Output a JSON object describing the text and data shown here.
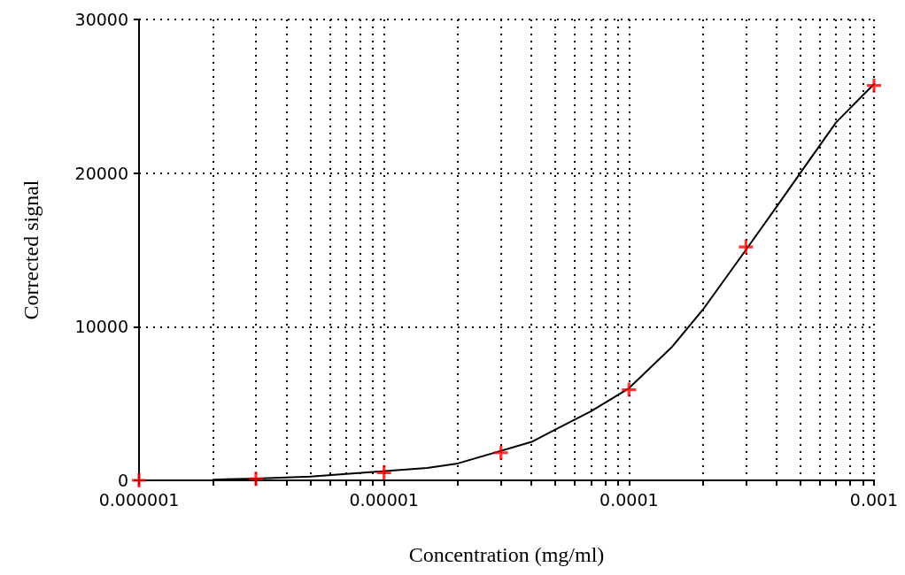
{
  "chart_data": {
    "type": "scatter",
    "xlabel": "Concentration (mg/ml)",
    "ylabel": "Corrected signal",
    "log": "x",
    "grid": true,
    "xlim": [
      1e-06,
      0.001
    ],
    "xticks": [
      {
        "value": 1e-06,
        "label": "0.000001"
      },
      {
        "value": 2e-06,
        "label": null
      },
      {
        "value": 3e-06,
        "label": null
      },
      {
        "value": 4e-06,
        "label": null
      },
      {
        "value": 5e-06,
        "label": null
      },
      {
        "value": 6e-06,
        "label": null
      },
      {
        "value": 7e-06,
        "label": null
      },
      {
        "value": 8e-06,
        "label": null
      },
      {
        "value": 9e-06,
        "label": null
      },
      {
        "value": 1e-05,
        "label": "0.00001"
      },
      {
        "value": 2e-05,
        "label": null
      },
      {
        "value": 3e-05,
        "label": null
      },
      {
        "value": 4e-05,
        "label": null
      },
      {
        "value": 5e-05,
        "label": null
      },
      {
        "value": 6e-05,
        "label": null
      },
      {
        "value": 7e-05,
        "label": null
      },
      {
        "value": 8e-05,
        "label": null
      },
      {
        "value": 9e-05,
        "label": null
      },
      0.0001,
      {
        "value": 0.0002,
        "label": null
      },
      {
        "value": 0.0003,
        "label": null
      },
      {
        "value": 0.0004,
        "label": null
      },
      {
        "value": 0.0005,
        "label": null
      },
      {
        "value": 0.0006,
        "label": null
      },
      {
        "value": 0.0007,
        "label": null
      },
      {
        "value": 0.0008,
        "label": null
      },
      {
        "value": 0.0009,
        "label": null
      },
      0.001
    ],
    "ylim": [
      0,
      30000
    ],
    "yticks": [
      0,
      10000,
      20000,
      30000
    ],
    "series": [
      {
        "type": "line",
        "color": "#000000",
        "marker": "none",
        "line_style": "solid",
        "x": [
          2e-06,
          3e-06,
          5e-06,
          1.5e-05,
          2e-05,
          4e-05,
          5e-05,
          7e-05,
          0.0001,
          0.00015,
          0.0002,
          0.0003,
          0.0004,
          0.0005,
          0.0007,
          0.001
        ],
        "values": [
          50,
          120,
          250,
          800,
          1100,
          2500,
          3300,
          4500,
          6000,
          8700,
          11100,
          15000,
          17800,
          20000,
          23300,
          25800
        ]
      },
      {
        "color": "#ff0000",
        "marker": "cross",
        "x": [
          1e-06,
          3e-06,
          1e-05,
          3e-05,
          0.0001,
          0.0003,
          0.001
        ],
        "values": [
          0,
          100,
          500,
          1800,
          5900,
          15200,
          25700
        ]
      }
    ]
  }
}
